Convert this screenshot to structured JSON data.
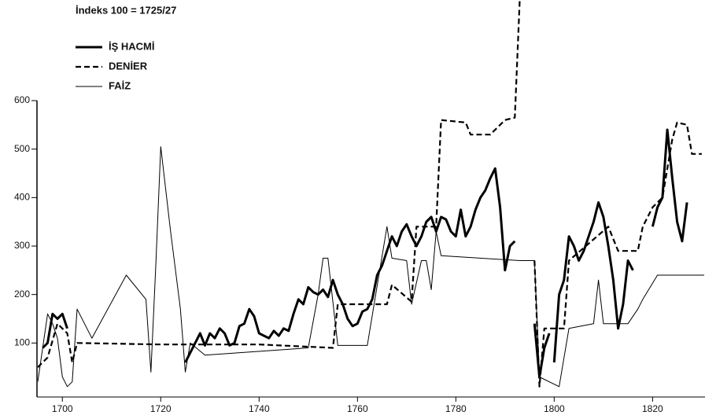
{
  "chart_data": {
    "type": "line",
    "subtitle": "İndeks 100 = 1725/27",
    "xlim": [
      1695,
      1830.5
    ],
    "ylim": [
      0,
      600
    ],
    "xticks": [
      1700,
      1720,
      1740,
      1760,
      1780,
      1800,
      1820
    ],
    "yticks": [
      100,
      200,
      300,
      400,
      500,
      600
    ],
    "series": [
      {
        "name": "İŞ HACMİ",
        "color": "#000000",
        "style": "solid",
        "width": 3,
        "x": [
          1696,
          1697,
          1698,
          1699,
          1700,
          1701,
          null,
          1725,
          1726,
          1728,
          1729,
          1730,
          1731,
          1732,
          1733,
          1734,
          1735,
          1736,
          1737,
          1738,
          1739,
          1740,
          1741,
          1742,
          1743,
          1744,
          1745,
          1746,
          1747,
          1748,
          1749,
          1750,
          1751,
          1752,
          1753,
          1754,
          1755,
          1756,
          1757,
          1758,
          1759,
          1760,
          1761,
          1762,
          1763,
          1764,
          1765,
          1766,
          1767,
          1768,
          1769,
          1770,
          1771,
          1772,
          1773,
          1774,
          1775,
          1776,
          1777,
          1778,
          1779,
          1780,
          1781,
          1782,
          1783,
          1784,
          1785,
          1786,
          1787,
          1788,
          1789,
          1790,
          1791,
          1792,
          null,
          1796,
          1797,
          1798,
          1799,
          null,
          1800,
          1801,
          1802,
          1803,
          1804,
          1805,
          1806,
          1807,
          1808,
          1809,
          1810,
          1811,
          1812,
          1813,
          1814,
          1815,
          1816,
          null,
          1820,
          1821,
          1822,
          1823,
          1824,
          1825,
          1826,
          1827
        ],
        "values": [
          90,
          100,
          160,
          150,
          160,
          130,
          null,
          60,
          80,
          120,
          95,
          120,
          110,
          130,
          120,
          95,
          100,
          135,
          140,
          170,
          155,
          120,
          115,
          110,
          125,
          115,
          130,
          125,
          160,
          190,
          180,
          215,
          205,
          200,
          210,
          195,
          230,
          200,
          180,
          150,
          135,
          140,
          165,
          170,
          190,
          240,
          260,
          290,
          320,
          300,
          330,
          345,
          320,
          300,
          320,
          350,
          360,
          330,
          360,
          355,
          330,
          320,
          375,
          320,
          340,
          375,
          400,
          415,
          440,
          460,
          380,
          250,
          300,
          310,
          null,
          140,
          30,
          90,
          120,
          null,
          60,
          200,
          230,
          320,
          300,
          270,
          290,
          320,
          350,
          390,
          360,
          300,
          230,
          130,
          180,
          270,
          250,
          null,
          340,
          380,
          400,
          540,
          440,
          350,
          310,
          390
        ]
      },
      {
        "name": "DENİER",
        "color": "#000000",
        "style": "dashed",
        "width": 2.2,
        "x": [
          1695,
          1697,
          1699,
          1701,
          1702,
          1703,
          1720,
          1740,
          1755,
          1756,
          1766,
          1767,
          1771,
          1772,
          1776,
          1777,
          1782,
          1783,
          1787,
          1790,
          1792,
          1793,
          null,
          1796,
          1797,
          1798,
          1802,
          1803,
          1811,
          1813,
          1817,
          1818,
          1820,
          1822,
          1824,
          1825,
          1827,
          1828,
          1830
        ],
        "values": [
          50,
          70,
          140,
          120,
          60,
          100,
          97,
          97,
          90,
          180,
          180,
          220,
          185,
          340,
          340,
          560,
          555,
          530,
          530,
          560,
          565,
          810,
          null,
          270,
          10,
          130,
          130,
          270,
          340,
          290,
          290,
          340,
          380,
          400,
          520,
          555,
          550,
          490,
          490
        ]
      },
      {
        "name": "FAİZ",
        "color": "#000000",
        "style": "solid",
        "width": 1,
        "x": [
          1695,
          1697,
          1698,
          1699,
          1700,
          1701,
          1702,
          1703,
          1706,
          1713,
          1717,
          1718,
          1719,
          1720,
          1722,
          1724,
          1725,
          1726,
          1729,
          1750,
          1752,
          1753,
          1754,
          1756,
          1762,
          1766,
          1767,
          1770,
          1771,
          1773,
          1774,
          1775,
          1776,
          1777,
          1793,
          1796,
          1797,
          1801,
          1803,
          1808,
          1809,
          1810,
          1815,
          1817,
          1818,
          1821,
          1835
        ],
        "values": [
          20,
          160,
          140,
          110,
          30,
          10,
          20,
          170,
          110,
          240,
          190,
          40,
          260,
          505,
          330,
          170,
          40,
          100,
          75,
          90,
          200,
          275,
          275,
          95,
          95,
          340,
          275,
          270,
          180,
          270,
          270,
          210,
          330,
          280,
          270,
          270,
          30,
          10,
          130,
          140,
          230,
          140,
          140,
          170,
          190,
          240,
          240
        ]
      }
    ]
  }
}
